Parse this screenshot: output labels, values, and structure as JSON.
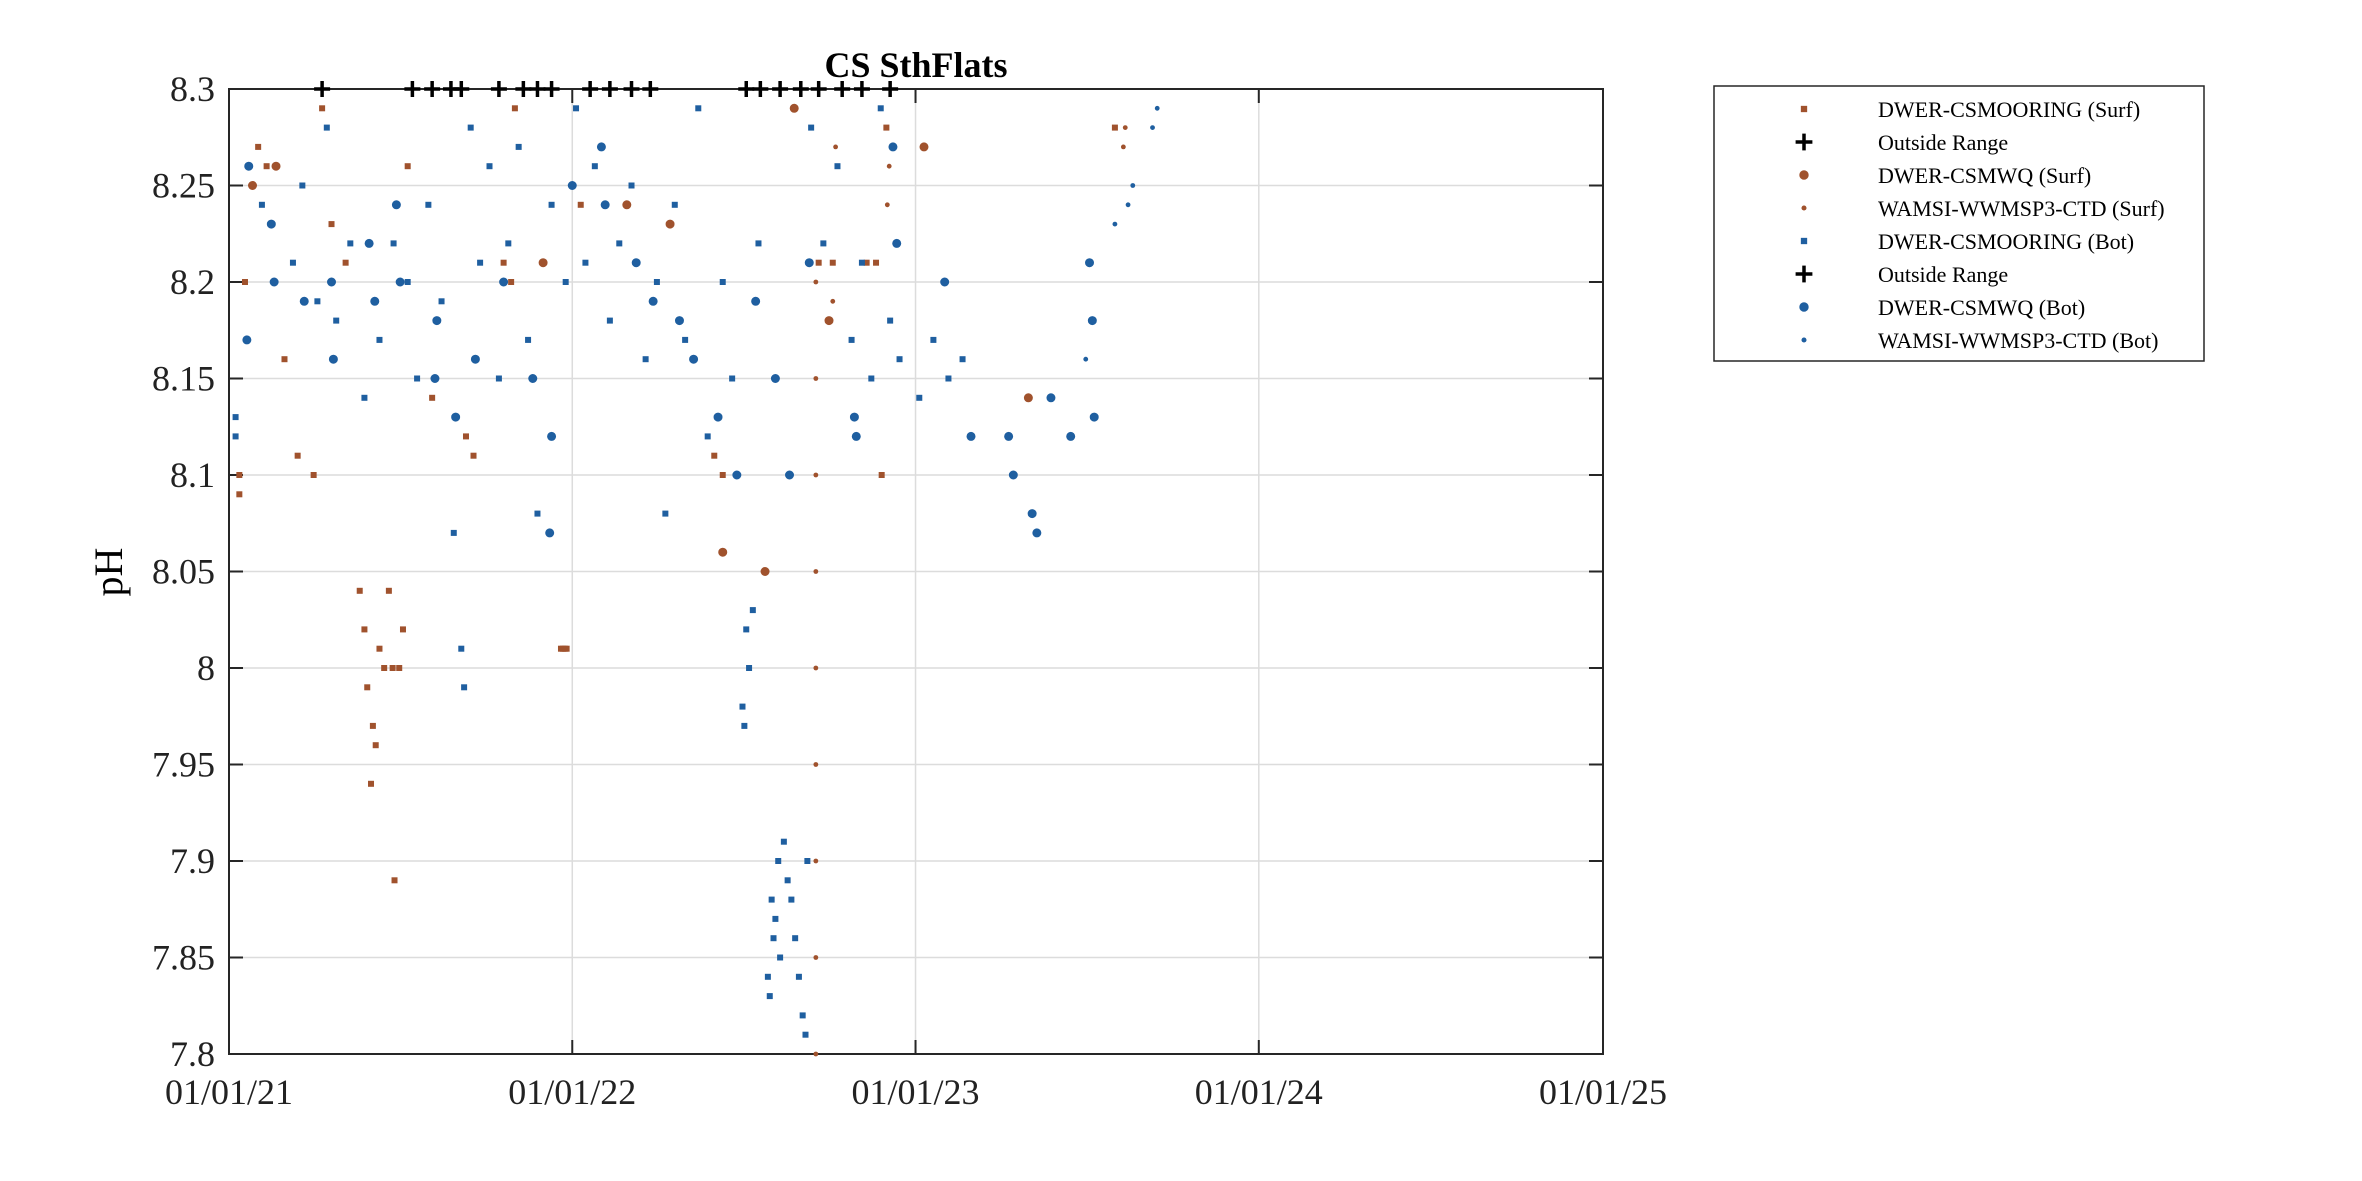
{
  "chart_data": {
    "type": "scatter",
    "title": "CS SthFlats",
    "ylabel": "pH",
    "xlabel": "",
    "x_axis": {
      "type": "date",
      "range": [
        "2021-01-01",
        "2025-01-01"
      ],
      "ticks": [
        {
          "date": "2021-01-01",
          "label": "01/01/21"
        },
        {
          "date": "2022-01-01",
          "label": "01/01/22"
        },
        {
          "date": "2023-01-01",
          "label": "01/01/23"
        },
        {
          "date": "2024-01-01",
          "label": "01/01/24"
        },
        {
          "date": "2025-01-01",
          "label": "01/01/25"
        }
      ]
    },
    "y_axis": {
      "range": [
        7.8,
        8.3
      ],
      "ticks": [
        {
          "value": 7.8,
          "label": "7.8"
        },
        {
          "value": 7.85,
          "label": "7.85"
        },
        {
          "value": 7.9,
          "label": "7.9"
        },
        {
          "value": 7.95,
          "label": "7.95"
        },
        {
          "value": 8.0,
          "label": "8"
        },
        {
          "value": 8.05,
          "label": "8.05"
        },
        {
          "value": 8.1,
          "label": "8.1"
        },
        {
          "value": 8.15,
          "label": "8.15"
        },
        {
          "value": 8.2,
          "label": "8.2"
        },
        {
          "value": 8.25,
          "label": "8.25"
        },
        {
          "value": 8.3,
          "label": "8.3"
        }
      ]
    },
    "grid": true,
    "legend_position": "outside-top-right",
    "colors": {
      "surf": "#a0522d",
      "bot": "#1f5fa0",
      "outside": "#000000"
    },
    "series": [
      {
        "name": "DWER-CSMOORING (Surf)",
        "marker": "square-small",
        "color": "#a0522d",
        "points": [
          [
            "2021-01-12",
            8.09
          ],
          [
            "2021-01-12",
            8.1
          ],
          [
            "2021-01-18",
            8.2
          ],
          [
            "2021-02-01",
            8.27
          ],
          [
            "2021-02-10",
            8.26
          ],
          [
            "2021-03-01",
            8.16
          ],
          [
            "2021-03-15",
            8.11
          ],
          [
            "2021-04-01",
            8.1
          ],
          [
            "2021-04-10",
            8.29
          ],
          [
            "2021-04-20",
            8.23
          ],
          [
            "2021-05-05",
            8.21
          ],
          [
            "2021-05-20",
            8.04
          ],
          [
            "2021-05-25",
            8.02
          ],
          [
            "2021-05-28",
            7.99
          ],
          [
            "2021-06-01",
            7.94
          ],
          [
            "2021-06-03",
            7.97
          ],
          [
            "2021-06-06",
            7.96
          ],
          [
            "2021-06-10",
            8.01
          ],
          [
            "2021-06-15",
            8.0
          ],
          [
            "2021-06-20",
            8.04
          ],
          [
            "2021-06-24",
            8.0
          ],
          [
            "2021-06-26",
            7.89
          ],
          [
            "2021-07-01",
            8.0
          ],
          [
            "2021-07-05",
            8.02
          ],
          [
            "2021-07-10",
            8.26
          ],
          [
            "2021-08-05",
            8.14
          ],
          [
            "2021-09-10",
            8.12
          ],
          [
            "2021-09-18",
            8.11
          ],
          [
            "2021-10-20",
            8.21
          ],
          [
            "2021-10-28",
            8.2
          ],
          [
            "2021-11-01",
            8.29
          ],
          [
            "2021-12-20",
            8.01
          ],
          [
            "2021-12-22",
            8.01
          ],
          [
            "2021-12-24",
            8.01
          ],
          [
            "2021-12-26",
            8.01
          ],
          [
            "2022-01-10",
            8.24
          ],
          [
            "2022-06-01",
            8.11
          ],
          [
            "2022-06-10",
            8.1
          ],
          [
            "2022-09-20",
            8.21
          ],
          [
            "2022-10-05",
            8.21
          ],
          [
            "2022-11-10",
            8.21
          ],
          [
            "2022-11-20",
            8.21
          ],
          [
            "2022-11-26",
            8.1
          ],
          [
            "2022-12-01",
            8.28
          ],
          [
            "2023-08-01",
            8.28
          ]
        ]
      },
      {
        "name": "Outside Range",
        "marker": "plus",
        "color": "#000000",
        "points": [
          [
            "2021-04-10",
            8.3
          ],
          [
            "2021-07-15",
            8.3
          ],
          [
            "2021-08-05",
            8.3
          ],
          [
            "2021-08-25",
            8.3
          ],
          [
            "2021-09-05",
            8.3
          ],
          [
            "2021-10-15",
            8.3
          ],
          [
            "2021-11-10",
            8.3
          ],
          [
            "2021-11-25",
            8.3
          ],
          [
            "2021-12-10",
            8.3
          ],
          [
            "2022-01-20",
            8.3
          ],
          [
            "2022-02-10",
            8.3
          ],
          [
            "2022-03-05",
            8.3
          ],
          [
            "2022-03-25",
            8.3
          ],
          [
            "2022-07-05",
            8.3
          ],
          [
            "2022-07-20",
            8.3
          ],
          [
            "2022-08-10",
            8.3
          ],
          [
            "2022-09-01",
            8.3
          ],
          [
            "2022-09-20",
            8.3
          ],
          [
            "2022-10-15",
            8.3
          ],
          [
            "2022-11-05",
            8.3
          ],
          [
            "2022-12-05",
            8.3
          ]
        ]
      },
      {
        "name": "DWER-CSMWQ (Surf)",
        "marker": "circle",
        "color": "#a0522d",
        "points": [
          [
            "2021-01-26",
            8.25
          ],
          [
            "2021-02-20",
            8.26
          ],
          [
            "2021-12-01",
            8.21
          ],
          [
            "2022-02-28",
            8.24
          ],
          [
            "2022-04-15",
            8.23
          ],
          [
            "2022-06-10",
            8.06
          ],
          [
            "2022-07-25",
            8.05
          ],
          [
            "2022-08-25",
            8.29
          ],
          [
            "2022-10-01",
            8.18
          ],
          [
            "2023-01-10",
            8.27
          ],
          [
            "2023-05-01",
            8.14
          ]
        ]
      },
      {
        "name": "WAMSI-WWMSP3-CTD (Surf)",
        "marker": "dot",
        "color": "#a0522d",
        "points": [
          [
            "2022-09-17",
            7.8
          ],
          [
            "2022-09-17",
            7.85
          ],
          [
            "2022-09-17",
            7.9
          ],
          [
            "2022-09-17",
            7.95
          ],
          [
            "2022-09-17",
            8.0
          ],
          [
            "2022-09-17",
            8.05
          ],
          [
            "2022-09-17",
            8.1
          ],
          [
            "2022-09-17",
            8.15
          ],
          [
            "2022-09-17",
            8.2
          ],
          [
            "2022-10-05",
            8.19
          ],
          [
            "2022-10-08",
            8.27
          ],
          [
            "2022-12-02",
            8.24
          ],
          [
            "2022-12-04",
            8.26
          ],
          [
            "2023-08-10",
            8.27
          ],
          [
            "2023-08-12",
            8.28
          ]
        ]
      },
      {
        "name": "DWER-CSMOORING (Bot)",
        "marker": "square-small",
        "color": "#1f5fa0",
        "points": [
          [
            "2021-01-08",
            8.13
          ],
          [
            "2021-01-08",
            8.12
          ],
          [
            "2021-02-05",
            8.24
          ],
          [
            "2021-03-10",
            8.21
          ],
          [
            "2021-03-20",
            8.25
          ],
          [
            "2021-04-05",
            8.19
          ],
          [
            "2021-04-15",
            8.28
          ],
          [
            "2021-04-25",
            8.18
          ],
          [
            "2021-05-10",
            8.22
          ],
          [
            "2021-05-25",
            8.14
          ],
          [
            "2021-06-10",
            8.17
          ],
          [
            "2021-06-25",
            8.22
          ],
          [
            "2021-07-10",
            8.2
          ],
          [
            "2021-07-20",
            8.15
          ],
          [
            "2021-08-01",
            8.24
          ],
          [
            "2021-08-15",
            8.19
          ],
          [
            "2021-08-28",
            8.07
          ],
          [
            "2021-09-05",
            8.01
          ],
          [
            "2021-09-08",
            7.99
          ],
          [
            "2021-09-15",
            8.28
          ],
          [
            "2021-09-25",
            8.21
          ],
          [
            "2021-10-05",
            8.26
          ],
          [
            "2021-10-15",
            8.15
          ],
          [
            "2021-10-25",
            8.22
          ],
          [
            "2021-11-05",
            8.27
          ],
          [
            "2021-11-15",
            8.17
          ],
          [
            "2021-11-25",
            8.08
          ],
          [
            "2021-12-10",
            8.24
          ],
          [
            "2021-12-25",
            8.2
          ],
          [
            "2022-01-05",
            8.29
          ],
          [
            "2022-01-15",
            8.21
          ],
          [
            "2022-01-25",
            8.26
          ],
          [
            "2022-02-10",
            8.18
          ],
          [
            "2022-02-20",
            8.22
          ],
          [
            "2022-03-05",
            8.25
          ],
          [
            "2022-03-20",
            8.16
          ],
          [
            "2022-04-01",
            8.2
          ],
          [
            "2022-04-10",
            8.08
          ],
          [
            "2022-04-20",
            8.24
          ],
          [
            "2022-05-01",
            8.17
          ],
          [
            "2022-05-15",
            8.29
          ],
          [
            "2022-05-25",
            8.12
          ],
          [
            "2022-06-10",
            8.2
          ],
          [
            "2022-06-20",
            8.15
          ],
          [
            "2022-07-01",
            7.98
          ],
          [
            "2022-07-03",
            7.97
          ],
          [
            "2022-07-05",
            8.02
          ],
          [
            "2022-07-08",
            8.0
          ],
          [
            "2022-07-12",
            8.03
          ],
          [
            "2022-07-18",
            8.22
          ],
          [
            "2022-07-28",
            7.84
          ],
          [
            "2022-07-30",
            7.83
          ],
          [
            "2022-08-01",
            7.88
          ],
          [
            "2022-08-03",
            7.86
          ],
          [
            "2022-08-05",
            7.87
          ],
          [
            "2022-08-08",
            7.9
          ],
          [
            "2022-08-10",
            7.85
          ],
          [
            "2022-08-14",
            7.91
          ],
          [
            "2022-08-18",
            7.89
          ],
          [
            "2022-08-22",
            7.88
          ],
          [
            "2022-08-26",
            7.86
          ],
          [
            "2022-08-30",
            7.84
          ],
          [
            "2022-09-03",
            7.82
          ],
          [
            "2022-09-06",
            7.81
          ],
          [
            "2022-09-08",
            7.9
          ],
          [
            "2022-09-12",
            8.28
          ],
          [
            "2022-09-25",
            8.22
          ],
          [
            "2022-10-10",
            8.26
          ],
          [
            "2022-10-25",
            8.17
          ],
          [
            "2022-11-05",
            8.21
          ],
          [
            "2022-11-15",
            8.15
          ],
          [
            "2022-11-25",
            8.29
          ],
          [
            "2022-12-05",
            8.18
          ],
          [
            "2022-12-15",
            8.16
          ],
          [
            "2023-01-05",
            8.14
          ],
          [
            "2023-01-20",
            8.17
          ],
          [
            "2023-02-05",
            8.15
          ],
          [
            "2023-02-20",
            8.16
          ]
        ]
      },
      {
        "name": "Outside Range",
        "marker": "plus",
        "color": "#000000",
        "points": []
      },
      {
        "name": "DWER-CSMWQ (Bot)",
        "marker": "circle",
        "color": "#1f5fa0",
        "points": [
          [
            "2021-01-20",
            8.17
          ],
          [
            "2021-01-22",
            8.26
          ],
          [
            "2021-02-15",
            8.23
          ],
          [
            "2021-02-18",
            8.2
          ],
          [
            "2021-03-22",
            8.19
          ],
          [
            "2021-04-20",
            8.2
          ],
          [
            "2021-04-22",
            8.16
          ],
          [
            "2021-05-30",
            8.22
          ],
          [
            "2021-06-05",
            8.19
          ],
          [
            "2021-06-28",
            8.24
          ],
          [
            "2021-07-02",
            8.2
          ],
          [
            "2021-08-08",
            8.15
          ],
          [
            "2021-08-10",
            8.18
          ],
          [
            "2021-08-30",
            8.13
          ],
          [
            "2021-09-20",
            8.16
          ],
          [
            "2021-10-20",
            8.2
          ],
          [
            "2021-11-20",
            8.15
          ],
          [
            "2021-12-08",
            8.07
          ],
          [
            "2021-12-10",
            8.12
          ],
          [
            "2022-01-01",
            8.25
          ],
          [
            "2022-02-01",
            8.27
          ],
          [
            "2022-02-05",
            8.24
          ],
          [
            "2022-03-10",
            8.21
          ],
          [
            "2022-03-28",
            8.19
          ],
          [
            "2022-04-25",
            8.18
          ],
          [
            "2022-05-10",
            8.16
          ],
          [
            "2022-06-05",
            8.13
          ],
          [
            "2022-06-25",
            8.1
          ],
          [
            "2022-07-15",
            8.19
          ],
          [
            "2022-08-05",
            8.15
          ],
          [
            "2022-08-20",
            8.1
          ],
          [
            "2022-09-10",
            8.21
          ],
          [
            "2022-10-28",
            8.13
          ],
          [
            "2022-10-30",
            8.12
          ],
          [
            "2022-12-08",
            8.27
          ],
          [
            "2022-12-12",
            8.22
          ],
          [
            "2023-02-01",
            8.2
          ],
          [
            "2023-03-01",
            8.12
          ],
          [
            "2023-04-10",
            8.12
          ],
          [
            "2023-04-15",
            8.1
          ],
          [
            "2023-05-05",
            8.08
          ],
          [
            "2023-05-10",
            8.07
          ],
          [
            "2023-05-25",
            8.14
          ],
          [
            "2023-06-15",
            8.12
          ],
          [
            "2023-07-05",
            8.21
          ],
          [
            "2023-07-08",
            8.18
          ],
          [
            "2023-07-10",
            8.13
          ]
        ]
      },
      {
        "name": "WAMSI-WWMSP3-CTD (Bot)",
        "marker": "dot",
        "color": "#1f5fa0",
        "points": [
          [
            "2023-07-01",
            8.16
          ],
          [
            "2023-08-01",
            8.23
          ],
          [
            "2023-08-15",
            8.24
          ],
          [
            "2023-08-20",
            8.25
          ],
          [
            "2023-09-10",
            8.28
          ],
          [
            "2023-09-15",
            8.29
          ]
        ]
      }
    ]
  }
}
